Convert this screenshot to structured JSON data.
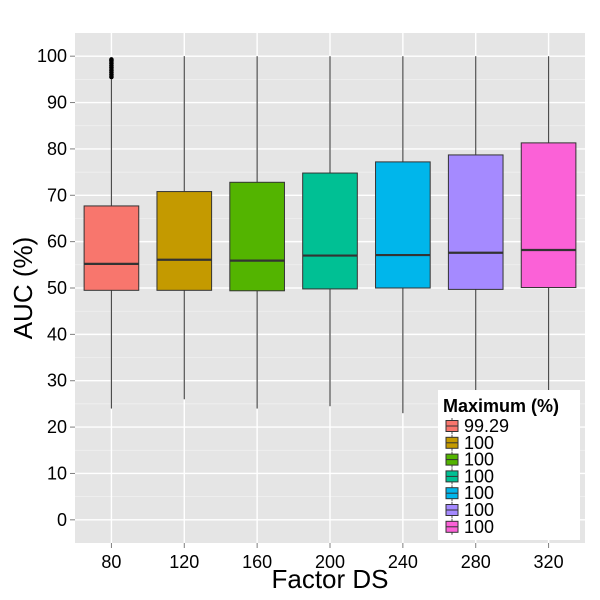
{
  "chart_data": {
    "type": "box",
    "title": "",
    "xlabel": "Factor DS",
    "ylabel": "AUC (%)",
    "ylim": [
      -5,
      105
    ],
    "yticks": [
      0,
      10,
      20,
      30,
      40,
      50,
      60,
      70,
      80,
      90,
      100
    ],
    "grid": true,
    "legend": {
      "title": "Maximum (%)",
      "position": "bottom-right",
      "entries": [
        "99.29",
        "100",
        "100",
        "100",
        "100",
        "100",
        "100"
      ]
    },
    "categories": [
      "80",
      "120",
      "160",
      "200",
      "240",
      "280",
      "320"
    ],
    "boxes": [
      {
        "category": "80",
        "whisker_low": 24,
        "q1": 49.5,
        "median": 55.2,
        "q3": 67.7,
        "whisker_high": 95,
        "outliers": [
          95.5,
          96,
          96.5,
          97,
          97.5,
          98,
          98.5,
          99,
          99.29
        ],
        "color": "#F8766D"
      },
      {
        "category": "120",
        "whisker_low": 26,
        "q1": 49.5,
        "median": 56.1,
        "q3": 70.8,
        "whisker_high": 100,
        "outliers": [],
        "color": "#C49A00"
      },
      {
        "category": "160",
        "whisker_low": 24,
        "q1": 49.4,
        "median": 55.9,
        "q3": 72.8,
        "whisker_high": 100,
        "outliers": [],
        "color": "#53B400"
      },
      {
        "category": "200",
        "whisker_low": 24.5,
        "q1": 49.8,
        "median": 57.0,
        "q3": 74.8,
        "whisker_high": 100,
        "outliers": [],
        "color": "#00C094"
      },
      {
        "category": "240",
        "whisker_low": 23,
        "q1": 50.0,
        "median": 57.1,
        "q3": 77.2,
        "whisker_high": 100,
        "outliers": [],
        "color": "#00B6EB"
      },
      {
        "category": "280",
        "whisker_low": 28,
        "q1": 49.7,
        "median": 57.6,
        "q3": 78.7,
        "whisker_high": 100,
        "outliers": [],
        "color": "#A58AFF"
      },
      {
        "category": "320",
        "whisker_low": 28,
        "q1": 50.1,
        "median": 58.2,
        "q3": 81.3,
        "whisker_high": 100,
        "outliers": [],
        "color": "#FB61D7"
      }
    ]
  }
}
